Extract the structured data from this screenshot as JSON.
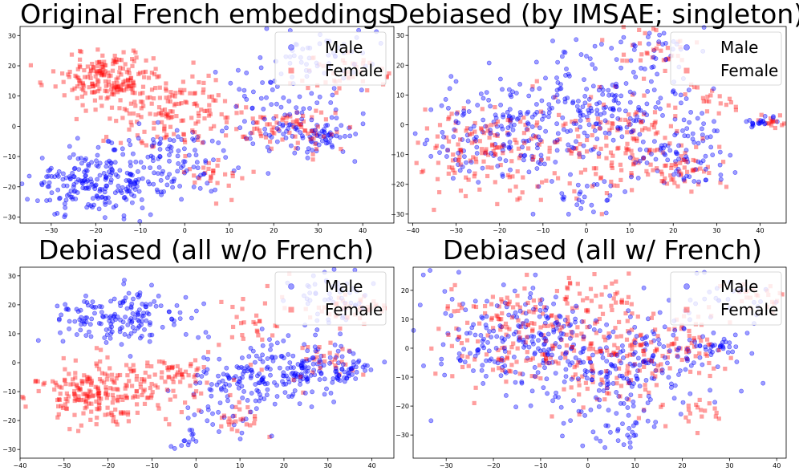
{
  "colors": {
    "male": "#0000ff",
    "female": "#ff0000"
  },
  "chart_data": [
    {
      "type": "scatter",
      "title": "Original French embeddings",
      "xlim": [
        -37,
        47
      ],
      "ylim": [
        -32,
        33
      ],
      "xticks": [
        -30,
        -20,
        -10,
        0,
        10,
        20,
        30,
        40
      ],
      "yticks": [
        -30,
        -20,
        -10,
        0,
        10,
        20,
        30
      ],
      "legend": [
        "Male",
        "Female"
      ],
      "legend_loc": "upper right",
      "series": [
        {
          "name": "Male",
          "marker": "circle",
          "clusters": [
            {
              "cx": -20,
              "cy": -19,
              "sx": 7.5,
              "sy": 5.5,
              "n": 230
            },
            {
              "cx": -2,
              "cy": -12,
              "sx": 6,
              "sy": 6,
              "n": 90
            },
            {
              "cx": 25,
              "cy": 0,
              "sx": 7,
              "sy": 6,
              "n": 90
            },
            {
              "cx": 32,
              "cy": -3,
              "sx": 2.5,
              "sy": 1.5,
              "n": 30
            },
            {
              "cx": 30,
              "cy": 23,
              "sx": 6,
              "sy": 5,
              "n": 55
            },
            {
              "cx": 15,
              "cy": 12,
              "sx": 6,
              "sy": 5,
              "n": 20
            }
          ]
        },
        {
          "name": "Female",
          "marker": "square",
          "clusters": [
            {
              "cx": -17,
              "cy": 16,
              "sx": 6,
              "sy": 4.5,
              "n": 190
            },
            {
              "cx": -2,
              "cy": 5,
              "sx": 7,
              "sy": 6,
              "n": 150
            },
            {
              "cx": 8,
              "cy": -16,
              "sx": 3,
              "sy": 4,
              "n": 25
            },
            {
              "cx": 22,
              "cy": 0,
              "sx": 5,
              "sy": 4,
              "n": 55
            },
            {
              "cx": 37,
              "cy": 17,
              "sx": 6,
              "sy": 3,
              "n": 40
            },
            {
              "cx": 30,
              "cy": -2,
              "sx": 4,
              "sy": 3,
              "n": 20
            }
          ]
        }
      ]
    },
    {
      "type": "scatter",
      "title": "Debiased (by IMSAE; singleton)",
      "xlim": [
        -41,
        46
      ],
      "ylim": [
        -33,
        33
      ],
      "xticks": [
        -40,
        -30,
        -20,
        -10,
        0,
        10,
        20,
        30,
        40
      ],
      "yticks": [
        -30,
        -20,
        -10,
        0,
        10,
        20,
        30
      ],
      "legend": [
        "Male",
        "Female"
      ],
      "legend_loc": "upper right",
      "series": [
        {
          "name": "Male",
          "marker": "circle",
          "clusters": [
            {
              "cx": -18,
              "cy": -3,
              "sx": 10,
              "sy": 9,
              "n": 170
            },
            {
              "cx": 5,
              "cy": 6,
              "sx": 10,
              "sy": 10,
              "n": 190
            },
            {
              "cx": 22,
              "cy": -12,
              "sx": 6,
              "sy": 5,
              "n": 70
            },
            {
              "cx": 40,
              "cy": 1,
              "sx": 2,
              "sy": 1.2,
              "n": 20
            },
            {
              "cx": 15,
              "cy": 25,
              "sx": 5,
              "sy": 4,
              "n": 30
            },
            {
              "cx": 2,
              "cy": -24,
              "sx": 5,
              "sy": 3,
              "n": 25
            }
          ]
        },
        {
          "name": "Female",
          "marker": "square",
          "clusters": [
            {
              "cx": -22,
              "cy": -8,
              "sx": 8,
              "sy": 7,
              "n": 150
            },
            {
              "cx": 8,
              "cy": -7,
              "sx": 9,
              "sy": 8,
              "n": 140
            },
            {
              "cx": 22,
              "cy": -16,
              "sx": 4,
              "sy": 3,
              "n": 40
            },
            {
              "cx": 15,
              "cy": 25,
              "sx": 5,
              "sy": 4,
              "n": 35
            },
            {
              "cx": 42,
              "cy": 1,
              "sx": 2,
              "sy": 1.2,
              "n": 15
            },
            {
              "cx": 27,
              "cy": 8,
              "sx": 3,
              "sy": 3,
              "n": 20
            }
          ]
        }
      ]
    },
    {
      "type": "scatter",
      "title": "Debiased (all w/o French)",
      "xlim": [
        -40,
        45
      ],
      "ylim": [
        -33,
        33
      ],
      "xticks": [
        -40,
        -30,
        -20,
        -10,
        0,
        10,
        20,
        30,
        40
      ],
      "yticks": [
        -30,
        -20,
        -10,
        0,
        10,
        20,
        30
      ],
      "legend": [
        "Male",
        "Female"
      ],
      "legend_loc": "upper right",
      "series": [
        {
          "name": "Male",
          "marker": "circle",
          "clusters": [
            {
              "cx": -18,
              "cy": 15,
              "sx": 7,
              "sy": 4.5,
              "n": 160
            },
            {
              "cx": 10,
              "cy": -8,
              "sx": 7,
              "sy": 8,
              "n": 130
            },
            {
              "cx": 25,
              "cy": -2,
              "sx": 6,
              "sy": 6,
              "n": 120
            },
            {
              "cx": 35,
              "cy": -2,
              "sx": 3,
              "sy": 1.5,
              "n": 30
            },
            {
              "cx": 30,
              "cy": 24,
              "sx": 5,
              "sy": 5,
              "n": 50
            },
            {
              "cx": -2,
              "cy": -25,
              "sx": 3,
              "sy": 3,
              "n": 15
            }
          ]
        },
        {
          "name": "Female",
          "marker": "square",
          "clusters": [
            {
              "cx": -22,
              "cy": -10,
              "sx": 8,
              "sy": 5.5,
              "n": 220
            },
            {
              "cx": -5,
              "cy": -5,
              "sx": 5,
              "sy": 5,
              "n": 60
            },
            {
              "cx": 10,
              "cy": -20,
              "sx": 3,
              "sy": 3,
              "n": 25
            },
            {
              "cx": 14,
              "cy": 16,
              "sx": 5,
              "sy": 6,
              "n": 30
            },
            {
              "cx": 35,
              "cy": 18,
              "sx": 5,
              "sy": 3,
              "n": 40
            },
            {
              "cx": 28,
              "cy": 0,
              "sx": 5,
              "sy": 4,
              "n": 30
            }
          ]
        }
      ]
    },
    {
      "type": "scatter",
      "title": "Debiased (all w/ French)",
      "xlim": [
        -37,
        42
      ],
      "ylim": [
        -38,
        28
      ],
      "xticks": [
        -30,
        -20,
        -10,
        0,
        10,
        20,
        30,
        40
      ],
      "yticks": [
        -30,
        -20,
        -10,
        0,
        10,
        20
      ],
      "legend": [
        "Male",
        "Female"
      ],
      "legend_loc": "upper right",
      "series": [
        {
          "name": "Male",
          "marker": "circle",
          "clusters": [
            {
              "cx": -15,
              "cy": 3,
              "sx": 10,
              "sy": 9,
              "n": 200
            },
            {
              "cx": 5,
              "cy": -8,
              "sx": 9,
              "sy": 10,
              "n": 170
            },
            {
              "cx": 20,
              "cy": 0,
              "sx": 6,
              "sy": 6,
              "n": 60
            },
            {
              "cx": 28,
              "cy": 0,
              "sx": 2.5,
              "sy": 1.5,
              "n": 20
            },
            {
              "cx": 5,
              "cy": -30,
              "sx": 3,
              "sy": 3,
              "n": 20
            },
            {
              "cx": 30,
              "cy": 18,
              "sx": 6,
              "sy": 4,
              "n": 25
            }
          ]
        },
        {
          "name": "Female",
          "marker": "square",
          "clusters": [
            {
              "cx": -12,
              "cy": 5,
              "sx": 10,
              "sy": 9,
              "n": 190
            },
            {
              "cx": 10,
              "cy": -5,
              "sx": 9,
              "sy": 9,
              "n": 150
            },
            {
              "cx": 2,
              "cy": 18,
              "sx": 6,
              "sy": 4,
              "n": 30
            },
            {
              "cx": 22,
              "cy": -22,
              "sx": 3,
              "sy": 3,
              "n": 15
            },
            {
              "cx": 35,
              "cy": 18,
              "sx": 4,
              "sy": 3,
              "n": 25
            },
            {
              "cx": 22,
              "cy": 3,
              "sx": 4,
              "sy": 4,
              "n": 25
            }
          ]
        }
      ]
    }
  ]
}
